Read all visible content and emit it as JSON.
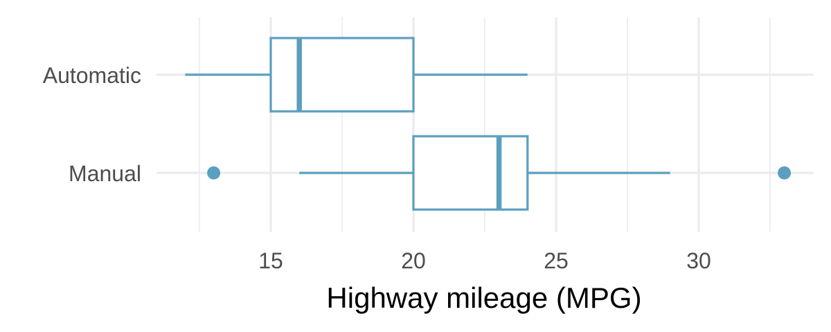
{
  "chart_data": {
    "type": "boxplot",
    "orientation": "horizontal",
    "title": "",
    "xlabel": "Highway mileage (MPG)",
    "ylabel": "",
    "xlim": [
      11.5,
      34.5
    ],
    "x_ticks": [
      15,
      20,
      25,
      30
    ],
    "x_minor_ticks": [
      12.5,
      17.5,
      22.5,
      27.5,
      32.5
    ],
    "grid": true,
    "color": "#5a9fbf",
    "categories": [
      "Automatic",
      "Manual"
    ],
    "series": [
      {
        "category": "Automatic",
        "whisker_low": 12,
        "q1": 15,
        "median": 16,
        "q3": 20,
        "whisker_high": 24,
        "outliers": []
      },
      {
        "category": "Manual",
        "whisker_low": 16,
        "q1": 20,
        "median": 23,
        "q3": 24,
        "whisker_high": 29,
        "outliers": [
          13,
          33
        ]
      }
    ]
  }
}
